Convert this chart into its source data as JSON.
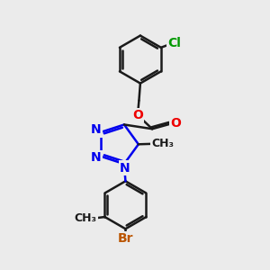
{
  "bg_color": "#ebebeb",
  "bond_color": "#1a1a1a",
  "bond_width": 1.8,
  "atom_colors": {
    "C": "#1a1a1a",
    "N": "#0000ee",
    "O": "#ee0000",
    "Cl": "#009900",
    "Br": "#bb5500"
  },
  "font_size": 10,
  "fig_size": [
    3.0,
    3.0
  ],
  "dpi": 100
}
